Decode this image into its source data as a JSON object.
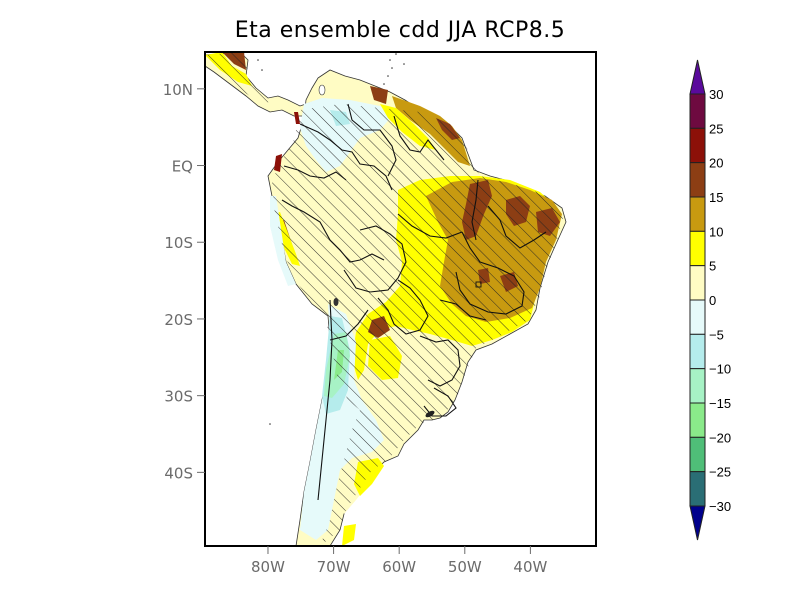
{
  "title": "Eta ensemble cdd JJA RCP8.5",
  "chart_data": {
    "type": "heatmap",
    "title": "Eta ensemble cdd JJA RCP8.5",
    "variable": "cdd",
    "season": "JJA",
    "scenario": "RCP8.5",
    "region": "South America",
    "hatching": "diagonal lines (significance)",
    "lat_ticks": [
      "10N",
      "EQ",
      "10S",
      "20S",
      "30S",
      "40S"
    ],
    "lat_tick_values": [
      10,
      0,
      -10,
      -20,
      -30,
      -40
    ],
    "lon_ticks": [
      "80W",
      "70W",
      "60W",
      "50W",
      "40W"
    ],
    "lon_tick_values": [
      -80,
      -70,
      -60,
      -50,
      -40
    ],
    "lat_range": [
      -49.6,
      14.8
    ],
    "lon_range": [
      -89.6,
      -30
    ],
    "colorbar": {
      "levels": [
        -30,
        -25,
        -20,
        -15,
        -10,
        -5,
        0,
        5,
        10,
        15,
        20,
        25,
        30
      ],
      "labels": [
        "30",
        "25",
        "20",
        "15",
        "10",
        "5",
        "0",
        "-5",
        "-10",
        "-15",
        "-20",
        "-25",
        "-30"
      ],
      "colors": [
        "#2a6e75",
        "#4fbe78",
        "#8aea8a",
        "#a7f2c5",
        "#b5ecec",
        "#e6fafa",
        "#fffcc4",
        "#ffff00",
        "#c89a10",
        "#8c3e14",
        "#8c1008",
        "#6e0a40"
      ],
      "under_color": "#00008c",
      "over_color": "#5a0a9c",
      "extend": "both"
    }
  }
}
